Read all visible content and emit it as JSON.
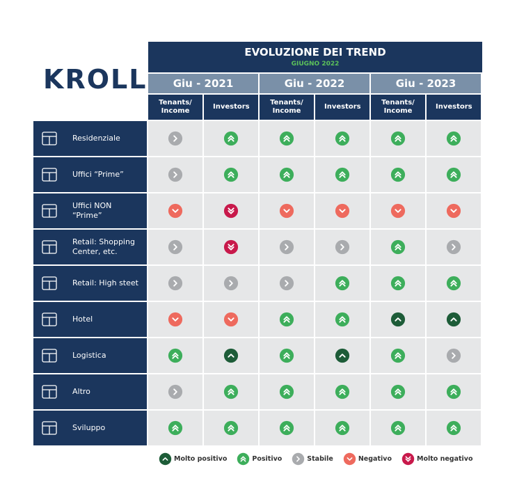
{
  "logo": "KROLL",
  "header": {
    "title": "EVOLUZIONE DEI TREND",
    "subtitle": "GIUGNO 2022"
  },
  "years": [
    "Giu - 2021",
    "Giu - 2022",
    "Giu - 2023"
  ],
  "columns": [
    "Tenants/ Income",
    "Investors",
    "Tenants/ Income",
    "Investors",
    "Tenants/ Income",
    "Investors"
  ],
  "legend": [
    {
      "label": "Molto positivo",
      "color": "#1d5c38"
    },
    {
      "label": "Positivo",
      "color": "#3dae5b"
    },
    {
      "label": "Stabile",
      "color": "#a9abae"
    },
    {
      "label": "Negativo",
      "color": "#ee6a5e"
    },
    {
      "label": "Molto negativo",
      "color": "#c8194b"
    }
  ],
  "table": {
    "rows": [
      {
        "label": "Residenziale",
        "cells": [
          "Stabile",
          "Positivo",
          "Positivo",
          "Positivo",
          "Positivo",
          "Positivo"
        ]
      },
      {
        "label": "Uffici “Prime”",
        "cells": [
          "Stabile",
          "Positivo",
          "Positivo",
          "Positivo",
          "Positivo",
          "Positivo"
        ]
      },
      {
        "label": "Uffici NON “Prime”",
        "cells": [
          "Negativo",
          "Molto negativo",
          "Negativo",
          "Negativo",
          "Negativo",
          "Negativo"
        ]
      },
      {
        "label": "Retail: Shopping Center, etc.",
        "cells": [
          "Stabile",
          "Molto negativo",
          "Stabile",
          "Stabile",
          "Positivo",
          "Stabile"
        ]
      },
      {
        "label": "Retail: High steet",
        "cells": [
          "Stabile",
          "Stabile",
          "Stabile",
          "Positivo",
          "Positivo",
          "Positivo"
        ]
      },
      {
        "label": "Hotel",
        "cells": [
          "Negativo",
          "Negativo",
          "Positivo",
          "Positivo",
          "Molto positivo",
          "Molto positivo"
        ]
      },
      {
        "label": "Logistica",
        "cells": [
          "Positivo",
          "Molto positivo",
          "Positivo",
          "Molto positivo",
          "Positivo",
          "Stabile"
        ]
      },
      {
        "label": "Altro",
        "cells": [
          "Stabile",
          "Positivo",
          "Positivo",
          "Positivo",
          "Positivo",
          "Positivo"
        ]
      },
      {
        "label": "Sviluppo",
        "cells": [
          "Positivo",
          "Positivo",
          "Positivo",
          "Positivo",
          "Positivo",
          "Positivo"
        ]
      }
    ]
  }
}
